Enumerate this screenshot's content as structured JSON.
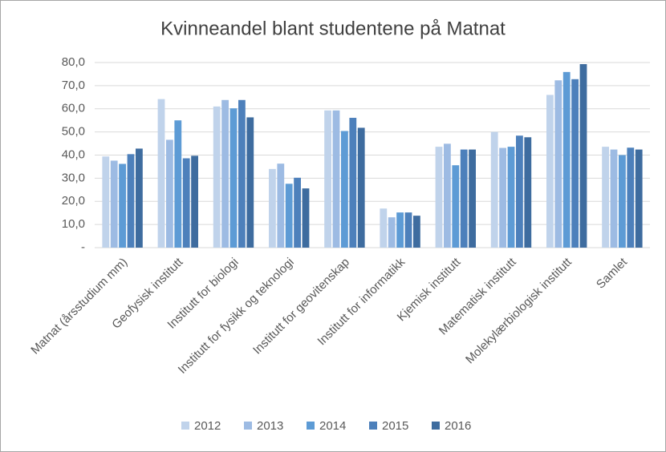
{
  "chart_data": {
    "type": "bar",
    "title": "Kvinneandel blant studentene på Matnat",
    "categories": [
      "Matnat (årsstudium mm)",
      "Geofysisk institutt",
      "Institutt for biologi",
      "Institutt for fysikk og teknologi",
      "Institutt for geovitenskap",
      "Institutt for informatikk",
      "Kjemisk institutt",
      "Matematisk institutt",
      "Molekylærbiologisk institutt",
      "Samlet"
    ],
    "series": [
      {
        "name": "2012",
        "color": "#c0d3eb",
        "values": [
          39.4,
          64.2,
          61.0,
          34.0,
          59.3,
          16.9,
          43.6,
          50.0,
          66.0,
          43.6
        ]
      },
      {
        "name": "2013",
        "color": "#9dbbe3",
        "values": [
          37.6,
          46.6,
          63.8,
          36.3,
          59.3,
          13.1,
          44.9,
          43.1,
          72.3,
          42.4
        ]
      },
      {
        "name": "2014",
        "color": "#5d9bd5",
        "values": [
          36.2,
          55.0,
          60.2,
          27.6,
          50.4,
          15.2,
          35.6,
          43.6,
          75.9,
          40.0
        ]
      },
      {
        "name": "2015",
        "color": "#4d80bb",
        "values": [
          40.4,
          38.6,
          63.8,
          30.2,
          56.1,
          15.2,
          42.4,
          48.4,
          72.8,
          43.2
        ]
      },
      {
        "name": "2016",
        "color": "#3e6c9f",
        "values": [
          42.8,
          39.7,
          56.3,
          25.6,
          51.8,
          13.8,
          42.4,
          47.7,
          79.3,
          42.4
        ]
      }
    ],
    "ylim": [
      0,
      80
    ],
    "yticks": [
      {
        "value": 0,
        "label": "-"
      },
      {
        "value": 10,
        "label": "10,0"
      },
      {
        "value": 20,
        "label": "20,0"
      },
      {
        "value": 30,
        "label": "30,0"
      },
      {
        "value": 40,
        "label": "40,0"
      },
      {
        "value": 50,
        "label": "50,0"
      },
      {
        "value": 60,
        "label": "60,0"
      },
      {
        "value": 70,
        "label": "70,0"
      },
      {
        "value": 80,
        "label": "80,0"
      }
    ],
    "grid": true,
    "legend": "bottom"
  }
}
